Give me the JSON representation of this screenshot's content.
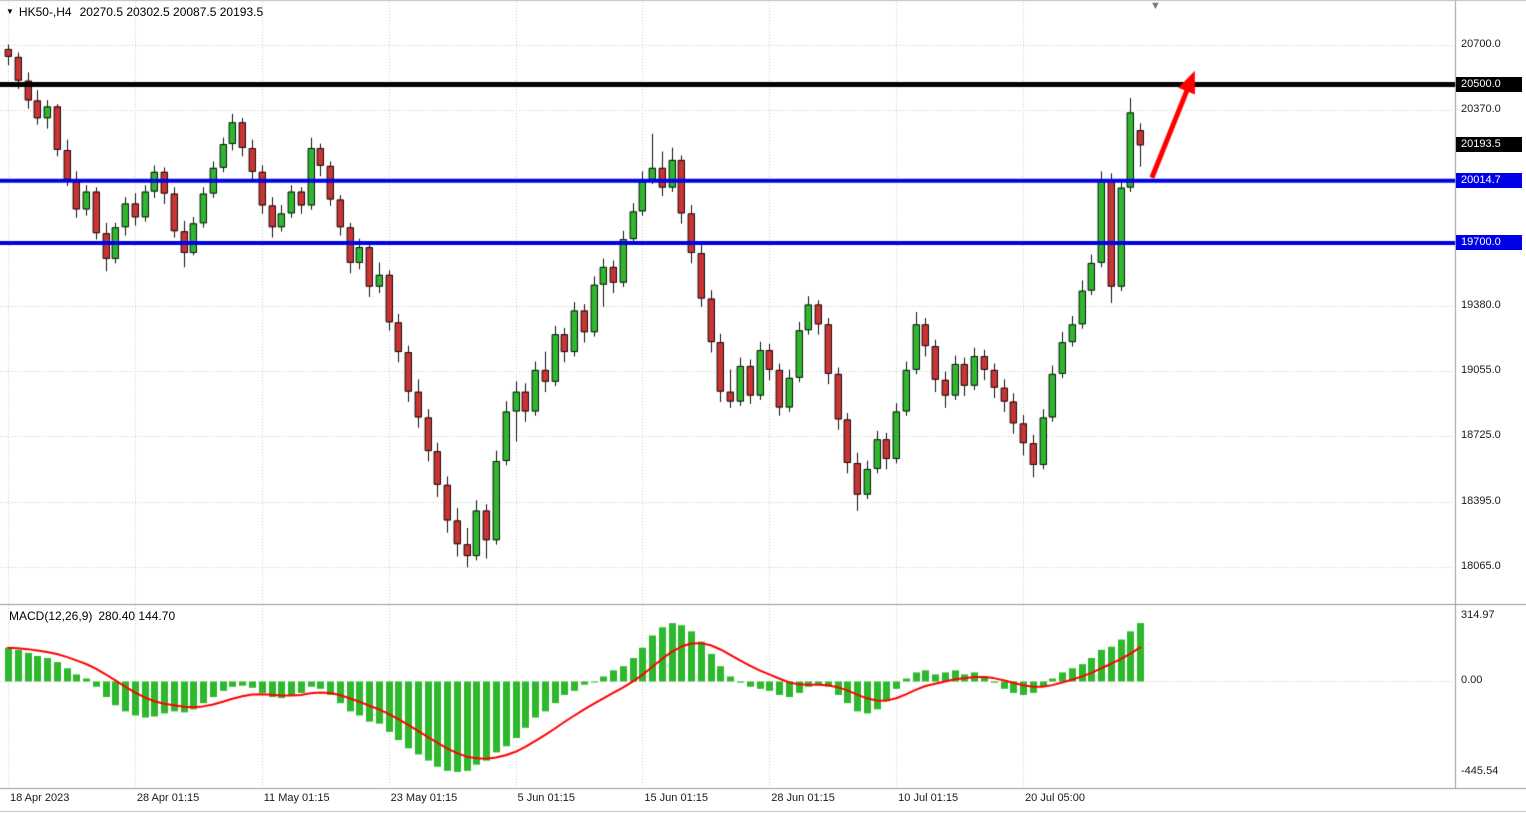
{
  "header": {
    "symbol_marker_icon": "▼",
    "symbol": "HK50-,H4",
    "ohlc": "20270.5 20302.5 20087.5 20193.5"
  },
  "chart_area": {
    "shift_marker_icon": "▼"
  },
  "chart_data": {
    "type": "candlestick",
    "title": "HK50-,H4",
    "timeframe": "H4",
    "colors": {
      "background": "#ffffff",
      "up": "#2eb82e",
      "down": "#cc3333",
      "wick": "#111111",
      "macd_histogram": "#2eb82e",
      "macd_signal": "#ff0000",
      "grid": "#cdcdcd",
      "separator": "#9b9b9b",
      "arrow": "#ff0000"
    },
    "ylim": [
      17878,
      20917
    ],
    "y_ticks": [
      {
        "price": 20700.0,
        "label": "20700.0"
      },
      {
        "price": 20370.0,
        "label": "20370.0"
      },
      {
        "price": 19380.0,
        "label": "19380.0"
      },
      {
        "price": 19055.0,
        "label": "19055.0"
      },
      {
        "price": 18725.0,
        "label": "18725.0"
      },
      {
        "price": 18395.0,
        "label": "18395.0"
      },
      {
        "price": 18065.0,
        "label": "18065.0"
      }
    ],
    "price_lines": [
      {
        "price": 20500.0,
        "label": "20500.0",
        "color": "#000000",
        "width": 5
      },
      {
        "price": 20014.7,
        "label": "20014.7",
        "color": "#0000e6",
        "width": 4
      },
      {
        "price": 19700.0,
        "label": "19700.0",
        "color": "#0000e6",
        "width": 4
      }
    ],
    "current_price": {
      "price": 20193.5,
      "label": "20193.5",
      "badge_color": "#000000"
    },
    "x_labels": [
      {
        "index": 0,
        "label": "18 Apr 2023"
      },
      {
        "index": 13,
        "label": "28 Apr 01:15"
      },
      {
        "index": 26,
        "label": "11 May 01:15"
      },
      {
        "index": 39,
        "label": "23 May 01:15"
      },
      {
        "index": 52,
        "label": "5 Jun 01:15"
      },
      {
        "index": 65,
        "label": "15 Jun 01:15"
      },
      {
        "index": 78,
        "label": "28 Jun 01:15"
      },
      {
        "index": 91,
        "label": "10 Jul 01:15"
      },
      {
        "index": 104,
        "label": "20 Jul 05:00"
      }
    ],
    "candles": [
      [
        20680,
        20700,
        20600,
        20640
      ],
      [
        20640,
        20660,
        20480,
        20520
      ],
      [
        20520,
        20560,
        20380,
        20420
      ],
      [
        20420,
        20470,
        20300,
        20330
      ],
      [
        20330,
        20420,
        20280,
        20390
      ],
      [
        20390,
        20400,
        20140,
        20170
      ],
      [
        20170,
        20220,
        19990,
        20020
      ],
      [
        20020,
        20060,
        19830,
        19870
      ],
      [
        19870,
        19990,
        19840,
        19960
      ],
      [
        19960,
        19980,
        19720,
        19750
      ],
      [
        19750,
        19800,
        19560,
        19620
      ],
      [
        19620,
        19800,
        19600,
        19780
      ],
      [
        19780,
        19930,
        19740,
        19900
      ],
      [
        19900,
        19950,
        19790,
        19830
      ],
      [
        19830,
        19990,
        19810,
        19960
      ],
      [
        19960,
        20090,
        19930,
        20060
      ],
      [
        20060,
        20080,
        19900,
        19950
      ],
      [
        19950,
        19980,
        19730,
        19760
      ],
      [
        19760,
        19810,
        19580,
        19650
      ],
      [
        19650,
        19830,
        19640,
        19800
      ],
      [
        19800,
        19980,
        19780,
        19950
      ],
      [
        19950,
        20110,
        19930,
        20080
      ],
      [
        20080,
        20230,
        20060,
        20200
      ],
      [
        20200,
        20350,
        20170,
        20310
      ],
      [
        20310,
        20330,
        20140,
        20180
      ],
      [
        20180,
        20220,
        20020,
        20060
      ],
      [
        20060,
        20090,
        19850,
        19890
      ],
      [
        19890,
        19930,
        19730,
        19780
      ],
      [
        19780,
        19890,
        19760,
        19850
      ],
      [
        19850,
        19990,
        19830,
        19960
      ],
      [
        19960,
        19980,
        19850,
        19890
      ],
      [
        19890,
        20230,
        19870,
        20180
      ],
      [
        20180,
        20200,
        20040,
        20090
      ],
      [
        20090,
        20110,
        19890,
        19920
      ],
      [
        19920,
        19940,
        19740,
        19780
      ],
      [
        19780,
        19800,
        19550,
        19600
      ],
      [
        19600,
        19720,
        19570,
        19680
      ],
      [
        19680,
        19700,
        19430,
        19480
      ],
      [
        19480,
        19600,
        19450,
        19540
      ],
      [
        19540,
        19560,
        19260,
        19300
      ],
      [
        19300,
        19340,
        19100,
        19150
      ],
      [
        19150,
        19180,
        18900,
        18950
      ],
      [
        18950,
        19010,
        18770,
        18820
      ],
      [
        18820,
        18860,
        18600,
        18650
      ],
      [
        18650,
        18690,
        18420,
        18480
      ],
      [
        18480,
        18520,
        18240,
        18300
      ],
      [
        18300,
        18360,
        18120,
        18180
      ],
      [
        18180,
        18260,
        18065,
        18120
      ],
      [
        18120,
        18400,
        18100,
        18350
      ],
      [
        18350,
        18380,
        18110,
        18200
      ],
      [
        18200,
        18650,
        18180,
        18600
      ],
      [
        18600,
        18900,
        18580,
        18850
      ],
      [
        18850,
        19000,
        18700,
        18950
      ],
      [
        18950,
        18990,
        18800,
        18850
      ],
      [
        18850,
        19100,
        18830,
        19060
      ],
      [
        19060,
        19150,
        18950,
        19000
      ],
      [
        19000,
        19280,
        18980,
        19240
      ],
      [
        19240,
        19270,
        19100,
        19150
      ],
      [
        19150,
        19400,
        19130,
        19360
      ],
      [
        19360,
        19390,
        19200,
        19250
      ],
      [
        19250,
        19530,
        19230,
        19490
      ],
      [
        19490,
        19620,
        19380,
        19580
      ],
      [
        19580,
        19610,
        19450,
        19500
      ],
      [
        19500,
        19760,
        19480,
        19720
      ],
      [
        19720,
        19900,
        19700,
        19860
      ],
      [
        19860,
        20060,
        19840,
        20020
      ],
      [
        20020,
        20250,
        20000,
        20080
      ],
      [
        20080,
        20160,
        19940,
        19980
      ],
      [
        19980,
        20180,
        19960,
        20120
      ],
      [
        20120,
        20140,
        19800,
        19850
      ],
      [
        19850,
        19890,
        19600,
        19650
      ],
      [
        19650,
        19690,
        19380,
        19420
      ],
      [
        19420,
        19460,
        19150,
        19200
      ],
      [
        19200,
        19240,
        18900,
        18950
      ],
      [
        18950,
        19060,
        18870,
        18900
      ],
      [
        18900,
        19120,
        18880,
        19080
      ],
      [
        19080,
        19110,
        18890,
        18930
      ],
      [
        18930,
        19200,
        18910,
        19160
      ],
      [
        19160,
        19190,
        19010,
        19060
      ],
      [
        19060,
        19090,
        18830,
        18870
      ],
      [
        18870,
        19060,
        18850,
        19020
      ],
      [
        19020,
        19300,
        19000,
        19260
      ],
      [
        19260,
        19430,
        19240,
        19390
      ],
      [
        19390,
        19410,
        19240,
        19290
      ],
      [
        19290,
        19320,
        18990,
        19040
      ],
      [
        19040,
        19070,
        18760,
        18810
      ],
      [
        18810,
        18840,
        18540,
        18590
      ],
      [
        18590,
        18640,
        18350,
        18430
      ],
      [
        18430,
        18600,
        18410,
        18560
      ],
      [
        18560,
        18750,
        18540,
        18710
      ],
      [
        18710,
        18740,
        18560,
        18610
      ],
      [
        18610,
        18890,
        18590,
        18850
      ],
      [
        18850,
        19100,
        18830,
        19060
      ],
      [
        19060,
        19350,
        19040,
        19290
      ],
      [
        19290,
        19320,
        19130,
        19180
      ],
      [
        19180,
        19210,
        18950,
        19010
      ],
      [
        19010,
        19050,
        18870,
        18930
      ],
      [
        18930,
        19130,
        18910,
        19090
      ],
      [
        19090,
        19120,
        18930,
        18980
      ],
      [
        18980,
        19170,
        18960,
        19130
      ],
      [
        19130,
        19160,
        19010,
        19060
      ],
      [
        19060,
        19090,
        18920,
        18970
      ],
      [
        18970,
        19010,
        18850,
        18900
      ],
      [
        18900,
        18940,
        18740,
        18790
      ],
      [
        18790,
        18830,
        18630,
        18690
      ],
      [
        18690,
        18730,
        18520,
        18580
      ],
      [
        18580,
        18860,
        18560,
        18820
      ],
      [
        18820,
        19080,
        18800,
        19040
      ],
      [
        19040,
        19250,
        19020,
        19200
      ],
      [
        19200,
        19330,
        19180,
        19290
      ],
      [
        19290,
        19510,
        19270,
        19460
      ],
      [
        19460,
        19640,
        19440,
        19600
      ],
      [
        19600,
        20060,
        19580,
        20020
      ],
      [
        20020,
        20050,
        19400,
        19480
      ],
      [
        19480,
        20010,
        19460,
        19980
      ],
      [
        19980,
        20430,
        19960,
        20360
      ],
      [
        20270.5,
        20302.5,
        20087.5,
        20193.5
      ]
    ],
    "macd": {
      "label": "MACD(12,26,9)",
      "values": "280.40 144.70",
      "signal_period": 9,
      "y_ticks": [
        {
          "value": 314.97,
          "label": "314.97"
        },
        {
          "value": 0,
          "label": "0.00"
        },
        {
          "value": -445.54,
          "label": "-445.54"
        }
      ],
      "histogram": [
        160,
        150,
        135,
        120,
        110,
        90,
        60,
        30,
        10,
        -30,
        -80,
        -120,
        -150,
        -170,
        -180,
        -175,
        -160,
        -150,
        -155,
        -140,
        -110,
        -80,
        -50,
        -30,
        -25,
        -35,
        -60,
        -80,
        -85,
        -75,
        -60,
        -30,
        -40,
        -70,
        -110,
        -150,
        -170,
        -200,
        -210,
        -250,
        -290,
        -330,
        -360,
        -390,
        -420,
        -440,
        -445,
        -440,
        -410,
        -390,
        -350,
        -320,
        -280,
        -230,
        -180,
        -150,
        -110,
        -70,
        -50,
        -20,
        -5,
        20,
        50,
        70,
        110,
        160,
        220,
        260,
        280,
        270,
        240,
        190,
        130,
        70,
        20,
        -10,
        -30,
        -40,
        -50,
        -70,
        -80,
        -60,
        -30,
        -20,
        -30,
        -70,
        -110,
        -150,
        -160,
        -140,
        -100,
        -40,
        10,
        40,
        50,
        30,
        40,
        50,
        30,
        40,
        20,
        -10,
        -40,
        -60,
        -70,
        -60,
        -30,
        10,
        40,
        60,
        80,
        110,
        150,
        165,
        200,
        240,
        280.4
      ]
    },
    "annotations": [
      {
        "type": "arrow",
        "from_index": 117.2,
        "from_price": 20030,
        "to_index": 121.6,
        "to_price": 20570,
        "color": "#ff0000"
      }
    ]
  }
}
